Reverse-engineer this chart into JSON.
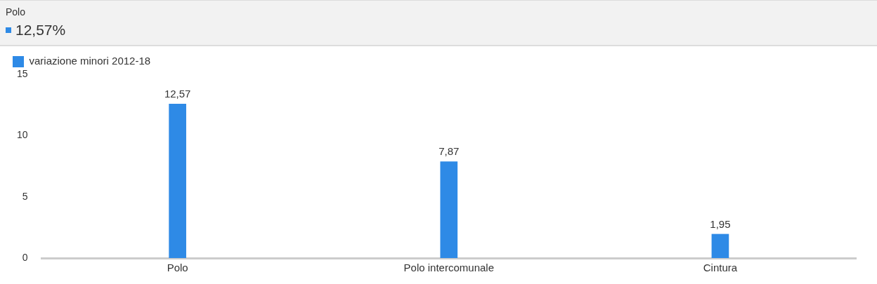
{
  "chart_data": {
    "type": "bar",
    "categories": [
      "Polo",
      "Polo intercomunale",
      "Cintura"
    ],
    "series": [
      {
        "name": "variazione minori 2012-18",
        "color": "#2e8ae6",
        "values": [
          12.57,
          7.87,
          1.95
        ],
        "value_labels": [
          "12,57",
          "7,87",
          "1,95"
        ]
      }
    ],
    "ylim": [
      0,
      15
    ],
    "yticks": [
      0,
      5,
      10,
      15
    ],
    "grid": false,
    "legend": "top left",
    "annotations": [
      "Polo",
      "12,57%"
    ]
  }
}
